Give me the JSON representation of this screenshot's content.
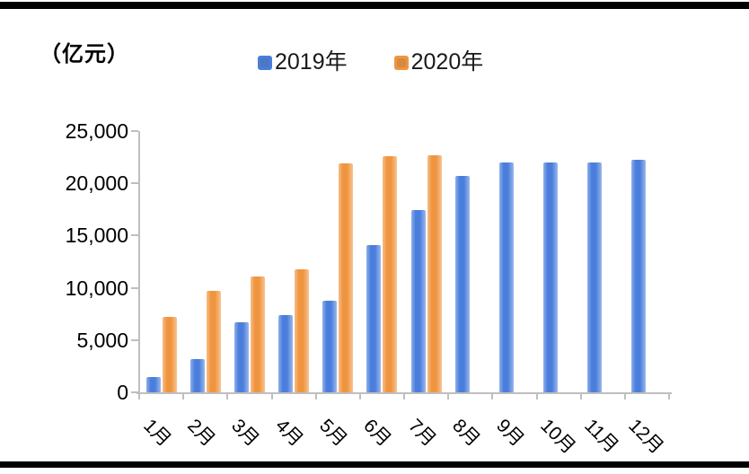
{
  "page": {
    "unit_label": "（亿元）"
  },
  "colors": {
    "series_2019": "#4A7EDC",
    "series_2020": "#F0953F",
    "axis": "#BFBFBF",
    "text": "#000000",
    "frame": "#000000",
    "background": "#FFFFFF"
  },
  "chart_data": {
    "type": "bar",
    "title": "",
    "unit": "（亿元）",
    "categories": [
      "1月",
      "2月",
      "3月",
      "4月",
      "5月",
      "6月",
      "7月",
      "8月",
      "9月",
      "10月",
      "11月",
      "12月"
    ],
    "series": [
      {
        "name": "2019年",
        "color": "#4A7EDC",
        "values": [
          1500,
          3200,
          6700,
          7400,
          8800,
          14100,
          17400,
          20700,
          22000,
          22000,
          22000,
          22250
        ]
      },
      {
        "name": "2020年",
        "color": "#F0953F",
        "values": [
          7250,
          9700,
          11050,
          11750,
          21900,
          22600,
          22700,
          null,
          null,
          null,
          null,
          null
        ]
      }
    ],
    "xlabel": "",
    "ylabel": "（亿元）",
    "ylim": [
      0,
      25000
    ],
    "ytick_interval": 5000,
    "ytick_labels": [
      "0",
      "5,000",
      "10,000",
      "15,000",
      "20,000",
      "25,000"
    ],
    "grid": false,
    "legend_position": "top",
    "x_label_rotation_deg": 45
  }
}
